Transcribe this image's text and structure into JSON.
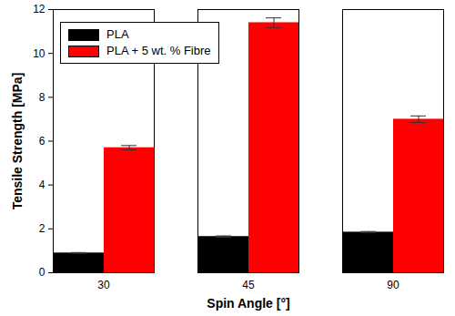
{
  "chart_data": {
    "type": "bar",
    "x_label": "Spin Angle [°]",
    "y_label": "Tensile Strength [MPa]",
    "categories": [
      30,
      45,
      90
    ],
    "series": [
      {
        "name": "PLA",
        "color": "#000000",
        "values": [
          0.9,
          1.65,
          1.85
        ],
        "errors": [
          0.02,
          0.03,
          0.03
        ]
      },
      {
        "name": "PLA + 5 wt. % Fibre",
        "color": "#ff0000",
        "values": [
          5.7,
          11.4,
          7.0
        ],
        "errors": [
          0.1,
          0.22,
          0.15
        ]
      }
    ],
    "ylim": [
      0,
      12
    ],
    "yticks": [
      0,
      2,
      4,
      6,
      8,
      10,
      12
    ],
    "legend": "upper left"
  }
}
